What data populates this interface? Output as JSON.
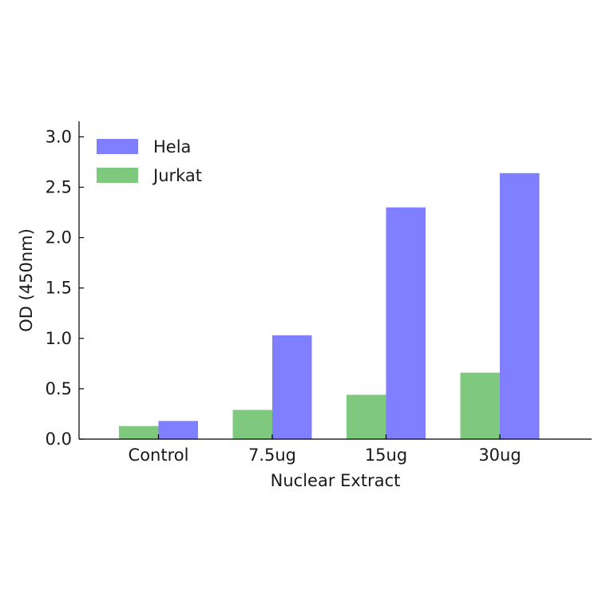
{
  "chart_data": {
    "type": "bar",
    "title": "",
    "xlabel": "Nuclear Extract",
    "ylabel": "OD (450nm)",
    "categories": [
      "Control",
      "7.5ug",
      "15ug",
      "30ug"
    ],
    "series": [
      {
        "name": "Jurkat",
        "color": "#7fc97f",
        "values": [
          0.13,
          0.29,
          0.44,
          0.66
        ]
      },
      {
        "name": "Hela",
        "color": "#7f7fff",
        "values": [
          0.18,
          1.03,
          2.3,
          2.64
        ]
      }
    ],
    "legend_order": [
      "Hela",
      "Jurkat"
    ],
    "yticks": [
      "0.0",
      "0.5",
      "1.0",
      "1.5",
      "2.0",
      "2.5",
      "3.0"
    ],
    "ylim": [
      0,
      3.15
    ],
    "grid": false,
    "legend_position": "top-left"
  }
}
